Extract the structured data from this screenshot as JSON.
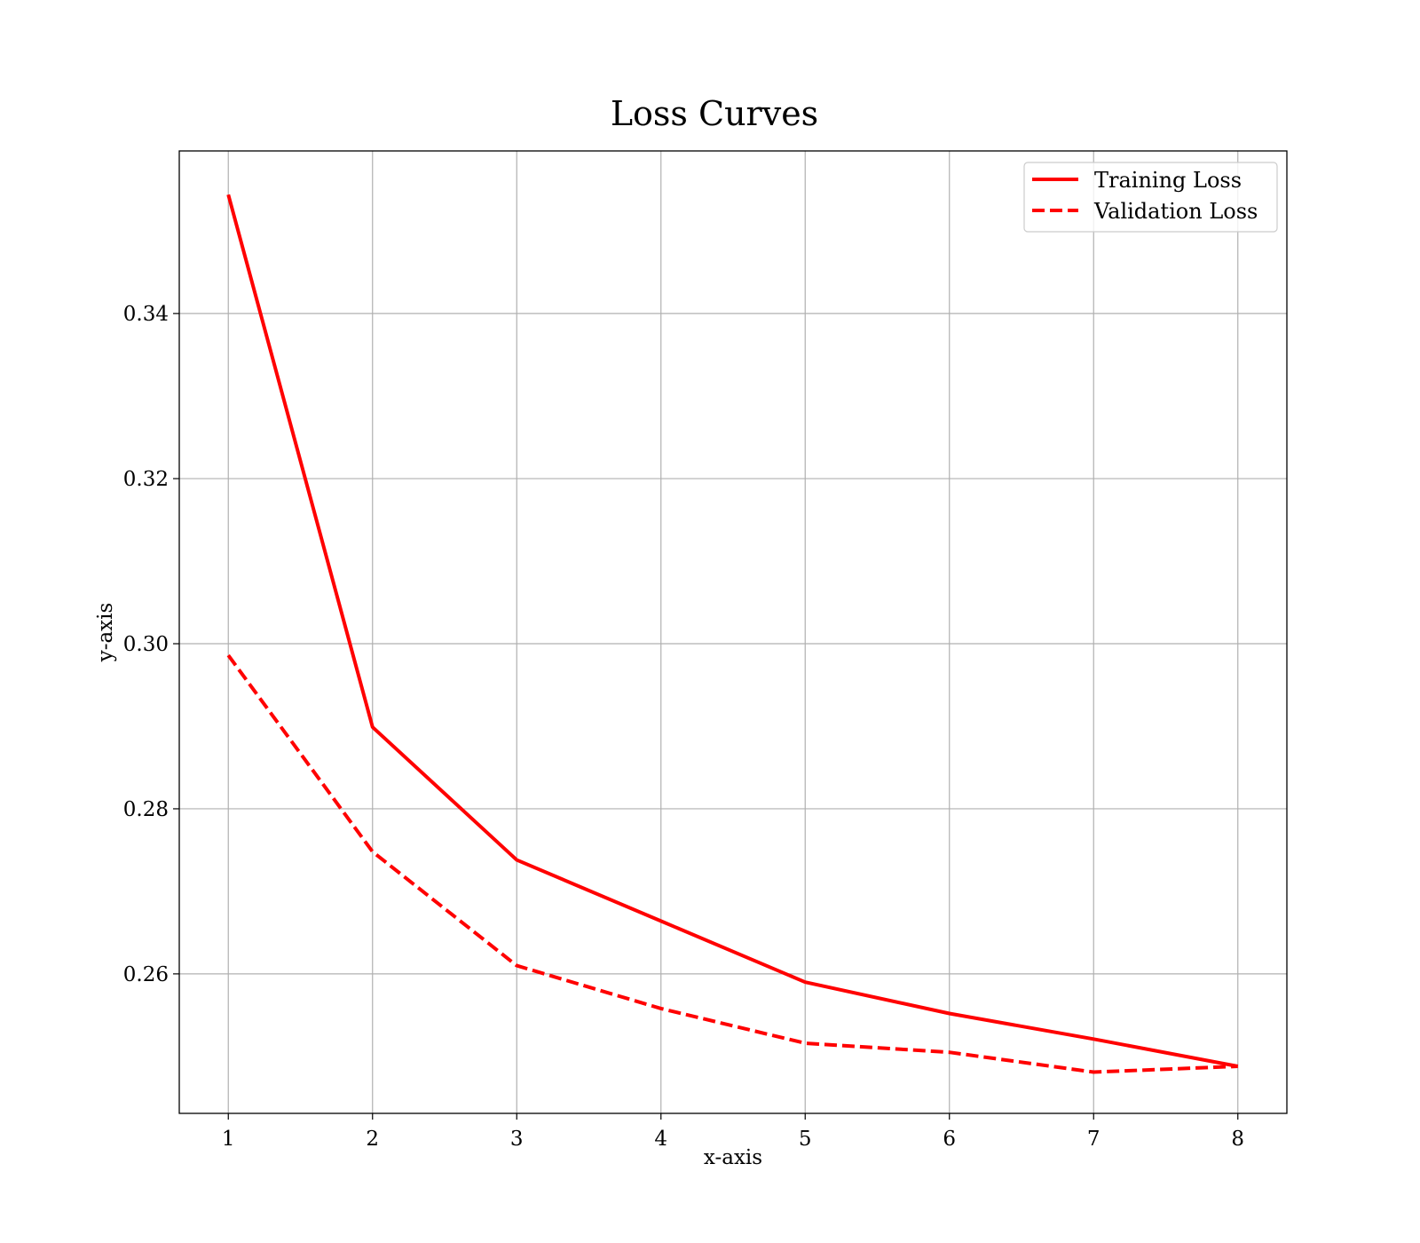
{
  "chart_data": {
    "type": "line",
    "title": "Loss Curves",
    "xlabel": "x-axis",
    "ylabel": "y-axis",
    "x": [
      1,
      2,
      3,
      4,
      5,
      6,
      7,
      8
    ],
    "xlim": [
      0.66,
      8.34
    ],
    "ylim": [
      0.2431,
      0.3597
    ],
    "xticks": [
      1,
      2,
      3,
      4,
      5,
      6,
      7,
      8
    ],
    "xtick_labels": [
      "1",
      "2",
      "3",
      "4",
      "5",
      "6",
      "7",
      "8"
    ],
    "yticks": [
      0.26,
      0.28,
      0.3,
      0.32,
      0.34
    ],
    "ytick_labels": [
      "0.26",
      "0.28",
      "0.30",
      "0.32",
      "0.34"
    ],
    "grid": true,
    "legend_position": "top-right",
    "series": [
      {
        "name": "Training Loss",
        "values": [
          0.3544,
          0.2899,
          0.2738,
          0.2664,
          0.259,
          0.2552,
          0.2521,
          0.2488
        ],
        "color": "#ff0000",
        "line_style": "solid"
      },
      {
        "name": "Validation Loss",
        "values": [
          0.2986,
          0.2748,
          0.261,
          0.2558,
          0.2516,
          0.2505,
          0.2481,
          0.2488
        ],
        "color": "#ff0000",
        "line_style": "dashed"
      }
    ]
  }
}
